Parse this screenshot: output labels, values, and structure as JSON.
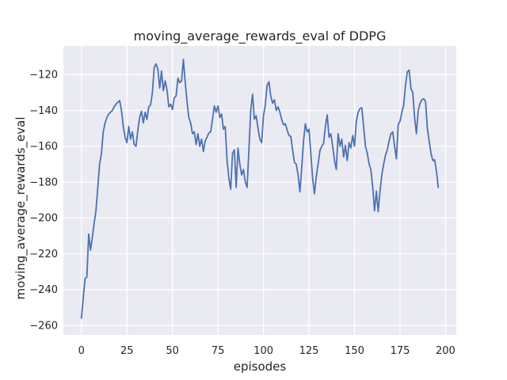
{
  "chart_data": {
    "type": "line",
    "title": "moving_average_rewards_eval of DDPG",
    "xlabel": "episodes",
    "ylabel": "moving_average_rewards_eval",
    "legend": false,
    "grid": true,
    "background_color": "#eaeaf2",
    "grid_color": "#ffffff",
    "text_color": "#262626",
    "xticks": [
      0,
      25,
      50,
      75,
      100,
      125,
      150,
      175,
      200
    ],
    "yticks": [
      -120,
      -140,
      -160,
      -180,
      -200,
      -220,
      -240,
      -260
    ],
    "xlim": [
      -9.9,
      205.9
    ],
    "ylim": [
      -265.3,
      -104.0
    ],
    "x_start": 0,
    "x_step": 1,
    "series": [
      {
        "name": "moving_average_rewards_eval",
        "color": "#4c72b0",
        "values": [
          -256,
          -245,
          -234,
          -233,
          -209,
          -218,
          -211,
          -203,
          -196,
          -183,
          -170,
          -164,
          -152,
          -147,
          -144,
          -142,
          -141,
          -140,
          -138,
          -136.5,
          -135.5,
          -134.5,
          -140,
          -149,
          -155,
          -158,
          -149,
          -156,
          -152,
          -159,
          -160,
          -151,
          -144,
          -140.5,
          -147,
          -141,
          -145,
          -138,
          -137,
          -130,
          -116,
          -114,
          -117,
          -127.5,
          -118,
          -129,
          -123.5,
          -128.5,
          -138,
          -136.5,
          -139.5,
          -133,
          -132,
          -122,
          -124.5,
          -123.5,
          -111.5,
          -124,
          -135,
          -144,
          -147,
          -153,
          -152,
          -159,
          -153,
          -160,
          -156,
          -163,
          -157,
          -155,
          -152.5,
          -152,
          -145,
          -137.5,
          -141,
          -137.5,
          -144,
          -142,
          -150.5,
          -149,
          -168,
          -178,
          -184,
          -164,
          -162,
          -183,
          -161,
          -170,
          -176,
          -173,
          -180,
          -183,
          -162,
          -140,
          -131,
          -145,
          -143,
          -150,
          -156,
          -158,
          -143,
          -137,
          -126,
          -124,
          -132,
          -136,
          -134,
          -140,
          -138,
          -141,
          -145,
          -148,
          -147.5,
          -151,
          -154,
          -154.5,
          -162,
          -169,
          -170,
          -176,
          -185.5,
          -172,
          -157,
          -147.5,
          -152,
          -150.5,
          -164,
          -178,
          -186.5,
          -177,
          -170,
          -162.5,
          -160,
          -158.5,
          -149,
          -142.5,
          -155,
          -153,
          -160,
          -168,
          -173,
          -153,
          -160,
          -156,
          -166,
          -159.5,
          -168,
          -158,
          -161,
          -154,
          -160,
          -146,
          -141,
          -139,
          -138.5,
          -149,
          -160,
          -164,
          -170,
          -173,
          -183,
          -196,
          -185,
          -196.5,
          -185,
          -176,
          -170,
          -165,
          -162,
          -157,
          -153,
          -152,
          -160,
          -167,
          -148,
          -146,
          -141,
          -137,
          -126,
          -118.5,
          -117.5,
          -128,
          -130,
          -144,
          -153,
          -140,
          -136,
          -134,
          -133.5,
          -135,
          -150,
          -157,
          -164,
          -168,
          -167.5,
          -174,
          -183
        ]
      }
    ]
  }
}
